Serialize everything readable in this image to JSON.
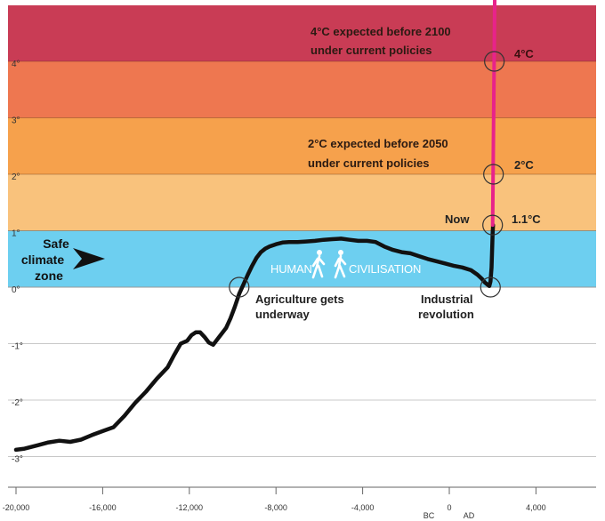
{
  "chart_data": {
    "type": "line",
    "title": "",
    "xlabel": "",
    "ylabel": "",
    "xlim": [
      -20000,
      5000
    ],
    "ylim": [
      -3.2,
      5
    ],
    "x_ticks": [
      {
        "value": -20000,
        "label": "-20,000"
      },
      {
        "value": -16000,
        "label": "-16,000"
      },
      {
        "value": -12000,
        "label": "-12,000"
      },
      {
        "value": -8000,
        "label": "-8,000"
      },
      {
        "value": -4000,
        "label": "-4,000"
      },
      {
        "value": 0,
        "label": "0"
      },
      {
        "value": 4000,
        "label": "4,000"
      }
    ],
    "era_labels": {
      "bc": "BC",
      "ad": "AD"
    },
    "y_ticks": [
      {
        "value": 4,
        "label": "4°"
      },
      {
        "value": 3,
        "label": "3°"
      },
      {
        "value": 2,
        "label": "2°"
      },
      {
        "value": 1,
        "label": "1°"
      },
      {
        "value": 0,
        "label": "0°"
      },
      {
        "value": -1,
        "label": "-1°"
      },
      {
        "value": -2,
        "label": "-2°"
      },
      {
        "value": -3,
        "label": "-3°"
      }
    ],
    "bands": [
      {
        "from": 0,
        "to": 1,
        "color": "#6dcff0"
      },
      {
        "from": 1,
        "to": 2,
        "color": "#f9c27c"
      },
      {
        "from": 2,
        "to": 3,
        "color": "#f6a14c"
      },
      {
        "from": 3,
        "to": 4,
        "color": "#ee7750"
      },
      {
        "from": 4,
        "to": 5,
        "color": "#c93c55"
      }
    ],
    "series": [
      {
        "color": "#111111",
        "x": [
          -20000,
          -19600,
          -19000,
          -18500,
          -18000,
          -17500,
          -17000,
          -16500,
          -16000,
          -15500,
          -15000,
          -14500,
          -14000,
          -13500,
          -13000,
          -12700,
          -12400,
          -12100,
          -11900,
          -11700,
          -11500,
          -11300,
          -11100,
          -10900,
          -10700,
          -10500,
          -10300,
          -10100,
          -9900,
          -9700,
          -9500,
          -9300,
          -9100,
          -8900,
          -8700,
          -8500,
          -8300,
          -8000,
          -7700,
          -7400,
          -7000,
          -6600,
          -6200,
          -5800,
          -5400,
          -5000,
          -4600,
          -4200,
          -3800,
          -3400,
          -3000,
          -2600,
          -2200,
          -1800,
          -1400,
          -1000,
          -600,
          -200,
          200,
          600,
          1000,
          1300,
          1500,
          1650,
          1750,
          1850,
          1900,
          1950,
          2000,
          2020
        ],
        "y": [
          -2.88,
          -2.86,
          -2.8,
          -2.75,
          -2.72,
          -2.74,
          -2.7,
          -2.62,
          -2.55,
          -2.48,
          -2.28,
          -2.05,
          -1.85,
          -1.62,
          -1.42,
          -1.2,
          -1.0,
          -0.95,
          -0.85,
          -0.8,
          -0.8,
          -0.88,
          -0.98,
          -1.02,
          -0.92,
          -0.82,
          -0.72,
          -0.55,
          -0.35,
          -0.12,
          0.05,
          0.22,
          0.38,
          0.52,
          0.62,
          0.68,
          0.72,
          0.76,
          0.79,
          0.8,
          0.8,
          0.81,
          0.82,
          0.84,
          0.85,
          0.86,
          0.84,
          0.82,
          0.82,
          0.8,
          0.72,
          0.66,
          0.62,
          0.6,
          0.55,
          0.5,
          0.46,
          0.42,
          0.38,
          0.35,
          0.3,
          0.22,
          0.15,
          0.08,
          0.05,
          0.02,
          0.1,
          0.35,
          0.95,
          1.1
        ]
      },
      {
        "color": "#e8238a",
        "x": [
          2000,
          2100
        ],
        "y": [
          1.1,
          5.2
        ]
      }
    ],
    "markers": [
      {
        "x": -9700,
        "y": 0
      },
      {
        "x": 1900,
        "y": 0
      },
      {
        "x": 2000,
        "y": 1.1
      },
      {
        "x": 2040,
        "y": 2
      },
      {
        "x": 2080,
        "y": 4
      }
    ],
    "annotations": {
      "four_deg_line1": "4°C expected before 2100",
      "four_deg_line2": "under current policies",
      "two_deg_line1": "2°C expected before 2050",
      "two_deg_line2": "under current policies",
      "now": "Now",
      "label_11": "1.1°C",
      "label_2": "2°C",
      "label_4": "4°C",
      "safe_line1": "Safe",
      "safe_line2": "climate",
      "safe_line3": "zone",
      "agri_line1": "Agriculture gets",
      "agri_line2": "underway",
      "ind_line1": "Industrial",
      "ind_line2": "revolution",
      "civ_left": "HUMAN",
      "civ_right": "CIVILISATION"
    }
  }
}
